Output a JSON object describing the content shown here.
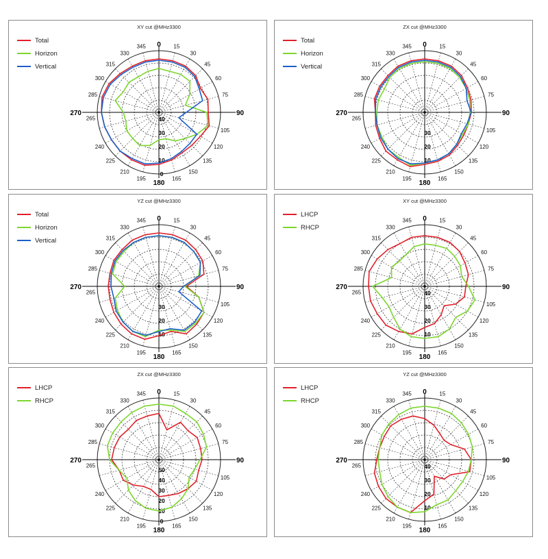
{
  "colors": {
    "red": "#e0202a",
    "green": "#7bd62c",
    "blue": "#1b5fc8"
  },
  "angles_major": [
    "0",
    "90",
    "180",
    "270"
  ],
  "chart_data": [
    {
      "type": "polar-line",
      "title": "XY cut @MHz3300",
      "theta_labels": [
        "15",
        "30",
        "45",
        "60",
        "75",
        "105",
        "120",
        "135",
        "150",
        "165",
        "195",
        "210",
        "225",
        "240",
        "265",
        "285",
        "300",
        "315",
        "330",
        "345"
      ],
      "r_labels": [
        "0",
        "10",
        "20",
        "30",
        "40"
      ],
      "rmin": 0,
      "rmax": 45,
      "legend": [
        {
          "name": "Total",
          "color": "red"
        },
        {
          "name": "Horizon",
          "color": "green"
        },
        {
          "name": "Vertical",
          "color": "blue"
        }
      ],
      "theta": [
        0,
        15,
        30,
        45,
        60,
        75,
        90,
        105,
        120,
        135,
        150,
        165,
        180,
        195,
        210,
        225,
        240,
        255,
        270,
        285,
        300,
        315,
        330,
        345
      ],
      "series": [
        {
          "name": "Total",
          "color": "red",
          "values": [
            39,
            39,
            39,
            38,
            35,
            37,
            36,
            38,
            35,
            34,
            34,
            36,
            38,
            40,
            40,
            40,
            40,
            41,
            42,
            43,
            42,
            40,
            39,
            39
          ]
        },
        {
          "name": "Horizon",
          "color": "green",
          "values": [
            32,
            31,
            32,
            32,
            26,
            20,
            35,
            37,
            32,
            27,
            24,
            20,
            20,
            25,
            28,
            27,
            27,
            25,
            26,
            33,
            30,
            31,
            30,
            31
          ]
        },
        {
          "name": "Vertical",
          "color": "blue",
          "values": [
            38,
            38,
            38,
            37,
            34,
            33,
            20,
            15,
            32,
            32,
            33,
            35,
            37,
            39,
            39,
            40,
            40,
            41,
            42,
            42,
            41,
            39,
            38,
            38
          ]
        }
      ]
    },
    {
      "type": "polar-line",
      "title": "ZX cut @MHz3300",
      "theta_labels": [
        "15",
        "30",
        "45",
        "60",
        "75",
        "105",
        "120",
        "135",
        "150",
        "165",
        "195",
        "210",
        "225",
        "240",
        "265",
        "285",
        "300",
        "315",
        "330",
        "345"
      ],
      "r_labels": [
        "10",
        "20",
        "30"
      ],
      "rmin": 0,
      "rmax": 45,
      "legend": [
        {
          "name": "Total",
          "color": "red"
        },
        {
          "name": "Horizon",
          "color": "green"
        },
        {
          "name": "Vertical",
          "color": "blue"
        }
      ],
      "theta": [
        0,
        15,
        30,
        45,
        60,
        75,
        90,
        105,
        120,
        135,
        150,
        165,
        180,
        195,
        210,
        225,
        240,
        255,
        270,
        285,
        300,
        315,
        330,
        345
      ],
      "series": [
        {
          "name": "Total",
          "color": "red",
          "values": [
            39,
            39,
            39,
            38,
            36,
            35,
            34,
            33,
            33,
            34,
            36,
            37,
            38,
            41,
            40,
            40,
            38,
            37,
            36,
            38,
            38,
            38,
            39,
            39
          ]
        },
        {
          "name": "Horizon",
          "color": "green",
          "values": [
            37,
            37,
            37,
            36,
            35,
            34,
            33,
            33,
            32,
            33,
            35,
            36,
            37,
            40,
            38,
            38,
            36,
            36,
            35,
            35,
            34,
            36,
            37,
            37
          ]
        },
        {
          "name": "Vertical",
          "color": "blue",
          "values": [
            38,
            38,
            38,
            37,
            35,
            32,
            34,
            32,
            31,
            33,
            35,
            36,
            37,
            39,
            39,
            38,
            37,
            36,
            36,
            37,
            37,
            37,
            38,
            38
          ]
        }
      ]
    },
    {
      "type": "polar-line",
      "title": "YZ cut @MHz3300",
      "theta_labels": [
        "15",
        "30",
        "45",
        "60",
        "75",
        "105",
        "120",
        "135",
        "150",
        "165",
        "195",
        "210",
        "225",
        "240",
        "265",
        "285",
        "300",
        "315",
        "330",
        "345"
      ],
      "r_labels": [
        "10",
        "20",
        "30"
      ],
      "rmin": 0,
      "rmax": 45,
      "legend": [
        {
          "name": "Total",
          "color": "red"
        },
        {
          "name": "Horizon",
          "color": "green"
        },
        {
          "name": "Vertical",
          "color": "blue"
        }
      ],
      "theta": [
        0,
        15,
        30,
        45,
        60,
        75,
        90,
        105,
        120,
        135,
        150,
        165,
        180,
        195,
        210,
        225,
        240,
        255,
        270,
        285,
        300,
        315,
        330,
        345
      ],
      "series": [
        {
          "name": "Total",
          "color": "red",
          "values": [
            39,
            39,
            39,
            38,
            37,
            34,
            20,
            30,
            38,
            39,
            40,
            34,
            36,
            40,
            40,
            39,
            38,
            37,
            37,
            37,
            38,
            38,
            39,
            39
          ]
        },
        {
          "name": "Horizon",
          "color": "green",
          "values": [
            37,
            37,
            37,
            36,
            35,
            30,
            19,
            30,
            38,
            38,
            38,
            33,
            32,
            38,
            38,
            37,
            35,
            33,
            25,
            35,
            36,
            36,
            37,
            37
          ]
        },
        {
          "name": "Vertical",
          "color": "blue",
          "values": [
            37,
            37,
            37,
            36,
            35,
            31,
            18,
            15,
            36,
            37,
            37,
            32,
            33,
            37,
            38,
            37,
            36,
            34,
            35,
            36,
            37,
            37,
            37,
            37
          ]
        }
      ]
    },
    {
      "type": "polar-line",
      "title": "XY cut @MHz3300",
      "theta_labels": [
        "15",
        "30",
        "45",
        "60",
        "75",
        "105",
        "120",
        "135",
        "150",
        "165",
        "195",
        "210",
        "225",
        "240",
        "265",
        "285",
        "300",
        "315",
        "330",
        "345"
      ],
      "r_labels": [
        "10",
        "20",
        "30",
        "40"
      ],
      "rmin": 0,
      "rmax": 45,
      "legend": [
        {
          "name": "LHCP",
          "color": "red"
        },
        {
          "name": "RHCP",
          "color": "green"
        }
      ],
      "theta": [
        0,
        15,
        30,
        45,
        60,
        75,
        90,
        105,
        120,
        135,
        150,
        165,
        180,
        195,
        210,
        225,
        240,
        255,
        270,
        285,
        300,
        315,
        330,
        345
      ],
      "series": [
        {
          "name": "LHCP",
          "color": "red",
          "values": [
            37,
            37,
            37,
            36,
            34,
            33,
            30,
            30,
            26,
            20,
            24,
            28,
            30,
            36,
            38,
            40,
            40,
            41,
            41,
            42,
            40,
            38,
            36,
            37
          ]
        },
        {
          "name": "RHCP",
          "color": "green",
          "values": [
            31,
            31,
            32,
            31,
            30,
            28,
            32,
            38,
            36,
            32,
            36,
            38,
            38,
            38,
            36,
            32,
            30,
            32,
            38,
            25,
            28,
            26,
            27,
            30
          ]
        }
      ]
    },
    {
      "type": "polar-line",
      "title": "ZX cut @MHz3300",
      "theta_labels": [
        "15",
        "30",
        "45",
        "60",
        "75",
        "105",
        "120",
        "135",
        "150",
        "165",
        "195",
        "210",
        "225",
        "240",
        "265",
        "285",
        "300",
        "315",
        "330",
        "345"
      ],
      "r_labels": [
        "0",
        "10",
        "20",
        "30",
        "40",
        "50"
      ],
      "rmin": 0,
      "rmax": 60,
      "legend": [
        {
          "name": "LHCP",
          "color": "red"
        },
        {
          "name": "RHCP",
          "color": "green"
        }
      ],
      "theta": [
        0,
        15,
        30,
        45,
        60,
        75,
        90,
        105,
        120,
        135,
        150,
        165,
        180,
        195,
        210,
        225,
        240,
        255,
        270,
        285,
        300,
        315,
        330,
        345
      ],
      "series": [
        {
          "name": "LHCP",
          "color": "red",
          "values": [
            45,
            30,
            42,
            40,
            43,
            42,
            42,
            40,
            42,
            40,
            38,
            36,
            36,
            30,
            30,
            35,
            40,
            40,
            46,
            45,
            44,
            42,
            44,
            44
          ]
        },
        {
          "name": "RHCP",
          "color": "green",
          "values": [
            54,
            54,
            52,
            52,
            50,
            48,
            40,
            36,
            34,
            40,
            44,
            48,
            50,
            49,
            46,
            42,
            36,
            40,
            48,
            52,
            52,
            52,
            53,
            54
          ]
        }
      ]
    },
    {
      "type": "polar-line",
      "title": "YZ cut @MHz3300",
      "theta_labels": [
        "15",
        "30",
        "45",
        "60",
        "75",
        "105",
        "120",
        "135",
        "150",
        "165",
        "195",
        "210",
        "225",
        "240",
        "265",
        "285",
        "300",
        "315",
        "330",
        "345"
      ],
      "r_labels": [
        "10",
        "20",
        "30",
        "40"
      ],
      "rmin": 0,
      "rmax": 45,
      "legend": [
        {
          "name": "LHCP",
          "color": "red"
        },
        {
          "name": "RHCP",
          "color": "green"
        }
      ],
      "theta": [
        0,
        15,
        30,
        45,
        60,
        75,
        90,
        105,
        120,
        135,
        150,
        165,
        180,
        195,
        210,
        225,
        240,
        255,
        270,
        285,
        300,
        315,
        330,
        345
      ],
      "series": [
        {
          "name": "LHCP",
          "color": "red",
          "values": [
            30,
            26,
            22,
            20,
            22,
            30,
            34,
            34,
            22,
            20,
            14,
            26,
            30,
            40,
            40,
            40,
            39,
            38,
            35,
            34,
            34,
            35,
            34,
            33
          ]
        },
        {
          "name": "RHCP",
          "color": "green",
          "values": [
            39,
            39,
            39,
            38,
            37,
            36,
            34,
            33,
            32,
            32,
            34,
            34,
            38,
            40,
            40,
            38,
            36,
            34,
            34,
            34,
            36,
            37,
            38,
            39
          ]
        }
      ]
    }
  ]
}
